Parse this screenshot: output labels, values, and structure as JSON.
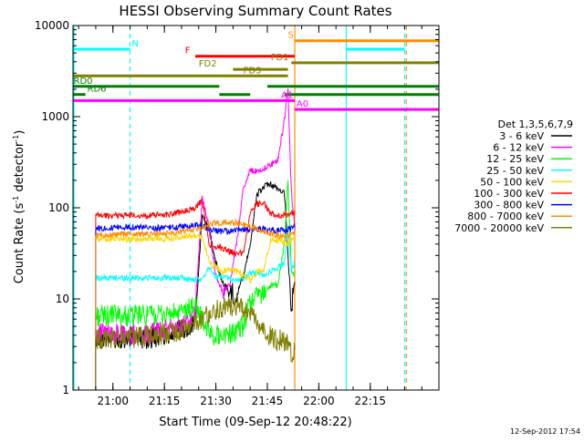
{
  "chart_data": {
    "type": "line",
    "title": "HESSI Observing Summary Count Rates",
    "xlabel": "Start Time (09-Sep-12 20:48:22)",
    "ylabel_prefix": "Count Rate (s",
    "ylabel_sup1": "-1",
    "ylabel_mid": " detector",
    "ylabel_sup2": "-1",
    "ylabel_suffix": ")",
    "x_range_minutes": [
      "20:48:22",
      "22:35:00"
    ],
    "yscale": "log",
    "ylim": [
      1,
      10000
    ],
    "x_ticks": [
      {
        "t": "21:00",
        "label": "21:00"
      },
      {
        "t": "21:15",
        "label": "21:15"
      },
      {
        "t": "21:30",
        "label": "21:30"
      },
      {
        "t": "21:45",
        "label": "21:45"
      },
      {
        "t": "22:00",
        "label": "22:00"
      },
      {
        "t": "22:15",
        "label": "22:15"
      }
    ],
    "y_ticks": [
      {
        "v": 1,
        "label": "1"
      },
      {
        "v": 10,
        "label": "10"
      },
      {
        "v": 100,
        "label": "100"
      },
      {
        "v": 1000,
        "label": "1000"
      },
      {
        "v": 10000,
        "label": "10000"
      }
    ],
    "legend": {
      "title": "Det 1,3,5,6,7,9",
      "placement": "right",
      "entries": [
        {
          "label": "3 - 6 keV",
          "color": "#000000"
        },
        {
          "label": "6 - 12 keV",
          "color": "#ff00ff"
        },
        {
          "label": "12 - 25 keV",
          "color": "#00ff00"
        },
        {
          "label": "25 - 50 keV",
          "color": "#00ffff"
        },
        {
          "label": "50 - 100 keV",
          "color": "#ffd700"
        },
        {
          "label": "100 - 300 keV",
          "color": "#ff0000"
        },
        {
          "label": "300 - 800 keV",
          "color": "#0000ff"
        },
        {
          "label": "800 - 7000 keV",
          "color": "#ff8c00"
        },
        {
          "label": "7000 - 20000 keV",
          "color": "#808000"
        }
      ]
    },
    "flags": [
      {
        "label": "N",
        "color": "#00ffff",
        "value": 5500,
        "segments": [
          [
            "20:48:22",
            "21:05:00"
          ],
          [
            "22:08:00",
            "22:25:00"
          ]
        ],
        "label_at": "21:05:30"
      },
      {
        "label": "S",
        "color": "#ff8c00",
        "value": 6800,
        "segments": [
          [
            "21:53:00",
            "22:35:00"
          ]
        ],
        "label_at": "21:51:00"
      },
      {
        "label": "F",
        "color": "#ff0000",
        "value": 4600,
        "segments": [
          [
            "21:24:00",
            "21:53:00"
          ]
        ],
        "label_at": "21:21:00"
      },
      {
        "label": "FD1",
        "color": "#808000",
        "value": 3900,
        "segments": [
          [
            "21:52:00",
            "22:35:00"
          ]
        ],
        "label_at": "21:46:00"
      },
      {
        "label": "FD2",
        "color": "#808000",
        "value": 3300,
        "segments": [
          [
            "21:35:00",
            "21:51:00"
          ]
        ],
        "label_at": "21:25:00"
      },
      {
        "label": "FD3",
        "color": "#808000",
        "value": 2800,
        "segments": [
          [
            "20:48:22",
            "21:51:00"
          ]
        ],
        "label_at": "21:38:00"
      },
      {
        "label": "RD0",
        "color": "#008000",
        "value": 2150,
        "segments": [
          [
            "20:48:22",
            "21:31:00"
          ],
          [
            "21:45:00",
            "22:35:00"
          ]
        ],
        "label_at": "20:48:30"
      },
      {
        "label": "RD6",
        "color": "#008000",
        "value": 1750,
        "segments": [
          [
            "20:48:22",
            "20:52:00"
          ],
          [
            "21:31:00",
            "21:40:00"
          ],
          [
            "21:50:00",
            "22:35:00"
          ]
        ],
        "label_at": "20:52:30"
      },
      {
        "label": "A1",
        "color": "#ff00ff",
        "value": 1500,
        "segments": [
          [
            "20:48:22",
            "21:53:00"
          ]
        ],
        "label_at": "21:49:00"
      },
      {
        "label": "A0",
        "color": "#ff00ff",
        "value": 1200,
        "segments": [
          [
            "21:53:00",
            "22:35:00"
          ]
        ],
        "label_at": "21:53:30"
      }
    ],
    "vertical_markers": [
      {
        "t": "20:48:40",
        "color": "#00ffff",
        "style": "solid"
      },
      {
        "t": "21:05:00",
        "color": "#00ffff",
        "style": "dashed"
      },
      {
        "t": "21:53:00",
        "color": "#ff8c00",
        "style": "solid"
      },
      {
        "t": "22:08:00",
        "color": "#00ffff",
        "style": "solid"
      },
      {
        "t": "22:25:00",
        "color": "#00ffff",
        "style": "dashed"
      },
      {
        "t": "22:25:30",
        "color": "#ff8c00",
        "style": "dashed"
      }
    ],
    "data_window": [
      "20:55:00",
      "21:53:00"
    ],
    "series": [
      {
        "name": "3 - 6 keV",
        "color": "#000000",
        "points": [
          [
            "20:55",
            3.8
          ],
          [
            "21:00",
            3.7
          ],
          [
            "21:05",
            3.8
          ],
          [
            "21:10",
            3.7
          ],
          [
            "21:15",
            4.0
          ],
          [
            "21:20",
            4.5
          ],
          [
            "21:24",
            5.5
          ],
          [
            "21:26",
            80
          ],
          [
            "21:28",
            60
          ],
          [
            "21:30",
            25
          ],
          [
            "21:32",
            15
          ],
          [
            "21:34",
            12
          ],
          [
            "21:36",
            11
          ],
          [
            "21:38",
            18
          ],
          [
            "21:40",
            40
          ],
          [
            "21:42",
            140
          ],
          [
            "21:44",
            170
          ],
          [
            "21:46",
            180
          ],
          [
            "21:48",
            160
          ],
          [
            "21:50",
            150
          ],
          [
            "21:51",
            30
          ],
          [
            "21:52",
            8
          ],
          [
            "21:53",
            15
          ]
        ]
      },
      {
        "name": "6 - 12 keV",
        "color": "#ff00ff",
        "points": [
          [
            "20:55",
            4.2
          ],
          [
            "21:00",
            4.1
          ],
          [
            "21:05",
            4.1
          ],
          [
            "21:10",
            4.2
          ],
          [
            "21:15",
            4.5
          ],
          [
            "21:20",
            5.0
          ],
          [
            "21:24",
            7.0
          ],
          [
            "21:26",
            130
          ],
          [
            "21:28",
            60
          ],
          [
            "21:30",
            18
          ],
          [
            "21:32",
            12
          ],
          [
            "21:34",
            14
          ],
          [
            "21:36",
            40
          ],
          [
            "21:38",
            160
          ],
          [
            "21:40",
            260
          ],
          [
            "21:42",
            250
          ],
          [
            "21:44",
            270
          ],
          [
            "21:46",
            300
          ],
          [
            "21:48",
            320
          ],
          [
            "21:50",
            950
          ],
          [
            "21:51",
            2000
          ],
          [
            "21:52",
            150
          ],
          [
            "21:53",
            60
          ]
        ]
      },
      {
        "name": "12 - 25 keV",
        "color": "#00ff00",
        "points": [
          [
            "20:55",
            6.5
          ],
          [
            "21:00",
            6.6
          ],
          [
            "21:05",
            6.5
          ],
          [
            "21:10",
            6.6
          ],
          [
            "21:15",
            6.7
          ],
          [
            "21:20",
            7.0
          ],
          [
            "21:24",
            8.5
          ],
          [
            "21:26",
            6.0
          ],
          [
            "21:28",
            4.2
          ],
          [
            "21:30",
            4.0
          ],
          [
            "21:32",
            4.1
          ],
          [
            "21:34",
            4.2
          ],
          [
            "21:36",
            4.3
          ],
          [
            "21:38",
            5.0
          ],
          [
            "21:40",
            9.0
          ],
          [
            "21:42",
            11
          ],
          [
            "21:44",
            12
          ],
          [
            "21:46",
            14
          ],
          [
            "21:48",
            14
          ],
          [
            "21:50",
            40
          ],
          [
            "21:51",
            200
          ],
          [
            "21:52",
            20
          ],
          [
            "21:53",
            18
          ]
        ]
      },
      {
        "name": "25 - 50 keV",
        "color": "#00ffff",
        "points": [
          [
            "20:55",
            17
          ],
          [
            "21:00",
            17
          ],
          [
            "21:05",
            17
          ],
          [
            "21:10",
            17
          ],
          [
            "21:15",
            17
          ],
          [
            "21:20",
            17
          ],
          [
            "21:24",
            16
          ],
          [
            "21:26",
            16
          ],
          [
            "21:28",
            23
          ],
          [
            "21:30",
            17
          ],
          [
            "21:32",
            18
          ],
          [
            "21:34",
            17
          ],
          [
            "21:36",
            16
          ],
          [
            "21:38",
            17
          ],
          [
            "21:40",
            19
          ],
          [
            "21:42",
            19
          ],
          [
            "21:44",
            18
          ],
          [
            "21:46",
            20
          ],
          [
            "21:48",
            22
          ],
          [
            "21:50",
            25
          ],
          [
            "21:51",
            60
          ],
          [
            "21:52",
            20
          ],
          [
            "21:53",
            25
          ]
        ]
      },
      {
        "name": "50 - 100 keV",
        "color": "#ffd700",
        "points": [
          [
            "20:55",
            46
          ],
          [
            "21:00",
            46
          ],
          [
            "21:05",
            45
          ],
          [
            "21:10",
            46
          ],
          [
            "21:15",
            46
          ],
          [
            "21:20",
            47
          ],
          [
            "21:24",
            50
          ],
          [
            "21:26",
            48
          ],
          [
            "21:28",
            26
          ],
          [
            "21:30",
            22
          ],
          [
            "21:32",
            20
          ],
          [
            "21:34",
            21
          ],
          [
            "21:36",
            20
          ],
          [
            "21:38",
            18
          ],
          [
            "21:40",
            16
          ],
          [
            "21:42",
            20
          ],
          [
            "21:44",
            21
          ],
          [
            "21:46",
            45
          ],
          [
            "21:48",
            44
          ],
          [
            "21:50",
            42
          ],
          [
            "21:51",
            40
          ],
          [
            "21:52",
            45
          ],
          [
            "21:53",
            50
          ]
        ]
      },
      {
        "name": "100 - 300 keV",
        "color": "#ff0000",
        "points": [
          [
            "20:55",
            82
          ],
          [
            "21:00",
            82
          ],
          [
            "21:05",
            83
          ],
          [
            "21:10",
            82
          ],
          [
            "21:15",
            84
          ],
          [
            "21:20",
            90
          ],
          [
            "21:24",
            100
          ],
          [
            "21:26",
            120
          ],
          [
            "21:28",
            40
          ],
          [
            "21:30",
            38
          ],
          [
            "21:32",
            36
          ],
          [
            "21:34",
            33
          ],
          [
            "21:36",
            32
          ],
          [
            "21:38",
            32
          ],
          [
            "21:40",
            90
          ],
          [
            "21:42",
            110
          ],
          [
            "21:44",
            115
          ],
          [
            "21:46",
            85
          ],
          [
            "21:48",
            83
          ],
          [
            "21:50",
            82
          ],
          [
            "21:51",
            84
          ],
          [
            "21:52",
            85
          ],
          [
            "21:53",
            90
          ]
        ]
      },
      {
        "name": "300 - 800 keV",
        "color": "#0000ff",
        "points": [
          [
            "20:55",
            60
          ],
          [
            "21:00",
            60
          ],
          [
            "21:05",
            62
          ],
          [
            "21:10",
            60
          ],
          [
            "21:15",
            60
          ],
          [
            "21:20",
            62
          ],
          [
            "21:24",
            64
          ],
          [
            "21:26",
            65
          ],
          [
            "21:28",
            58
          ],
          [
            "21:30",
            56
          ],
          [
            "21:32",
            55
          ],
          [
            "21:34",
            55
          ],
          [
            "21:36",
            56
          ],
          [
            "21:38",
            57
          ],
          [
            "21:40",
            58
          ],
          [
            "21:42",
            58
          ],
          [
            "21:44",
            58
          ],
          [
            "21:46",
            57
          ],
          [
            "21:48",
            56
          ],
          [
            "21:50",
            57
          ],
          [
            "21:51",
            58
          ],
          [
            "21:52",
            60
          ],
          [
            "21:53",
            62
          ]
        ]
      },
      {
        "name": "800 - 7000 keV",
        "color": "#ff8c00",
        "points": [
          [
            "20:55",
            50
          ],
          [
            "21:00",
            50
          ],
          [
            "21:05",
            52
          ],
          [
            "21:10",
            51
          ],
          [
            "21:15",
            52
          ],
          [
            "21:20",
            55
          ],
          [
            "21:24",
            58
          ],
          [
            "21:26",
            60
          ],
          [
            "21:28",
            64
          ],
          [
            "21:30",
            68
          ],
          [
            "21:32",
            68
          ],
          [
            "21:34",
            70
          ],
          [
            "21:36",
            68
          ],
          [
            "21:38",
            66
          ],
          [
            "21:40",
            62
          ],
          [
            "21:42",
            58
          ],
          [
            "21:44",
            54
          ],
          [
            "21:46",
            52
          ],
          [
            "21:48",
            50
          ],
          [
            "21:50",
            48
          ],
          [
            "21:51",
            49
          ],
          [
            "21:52",
            50
          ],
          [
            "21:53",
            52
          ]
        ]
      },
      {
        "name": "7000 - 20000 keV",
        "color": "#808000",
        "points": [
          [
            "20:55",
            3.6
          ],
          [
            "21:00",
            3.7
          ],
          [
            "21:05",
            3.8
          ],
          [
            "21:10",
            3.9
          ],
          [
            "21:15",
            4.1
          ],
          [
            "21:20",
            4.6
          ],
          [
            "21:24",
            5.5
          ],
          [
            "21:26",
            6.0
          ],
          [
            "21:28",
            7.0
          ],
          [
            "21:30",
            7.5
          ],
          [
            "21:32",
            8.0
          ],
          [
            "21:34",
            8.5
          ],
          [
            "21:36",
            8.2
          ],
          [
            "21:38",
            7.5
          ],
          [
            "21:40",
            6.5
          ],
          [
            "21:42",
            5.5
          ],
          [
            "21:44",
            4.5
          ],
          [
            "21:46",
            3.8
          ],
          [
            "21:48",
            3.5
          ],
          [
            "21:50",
            3.5
          ],
          [
            "21:51",
            3.6
          ],
          [
            "21:52",
            2.5
          ],
          [
            "21:53",
            2.8
          ]
        ]
      }
    ]
  },
  "footer": {
    "timestamp": "12-Sep-2012 17:54"
  }
}
